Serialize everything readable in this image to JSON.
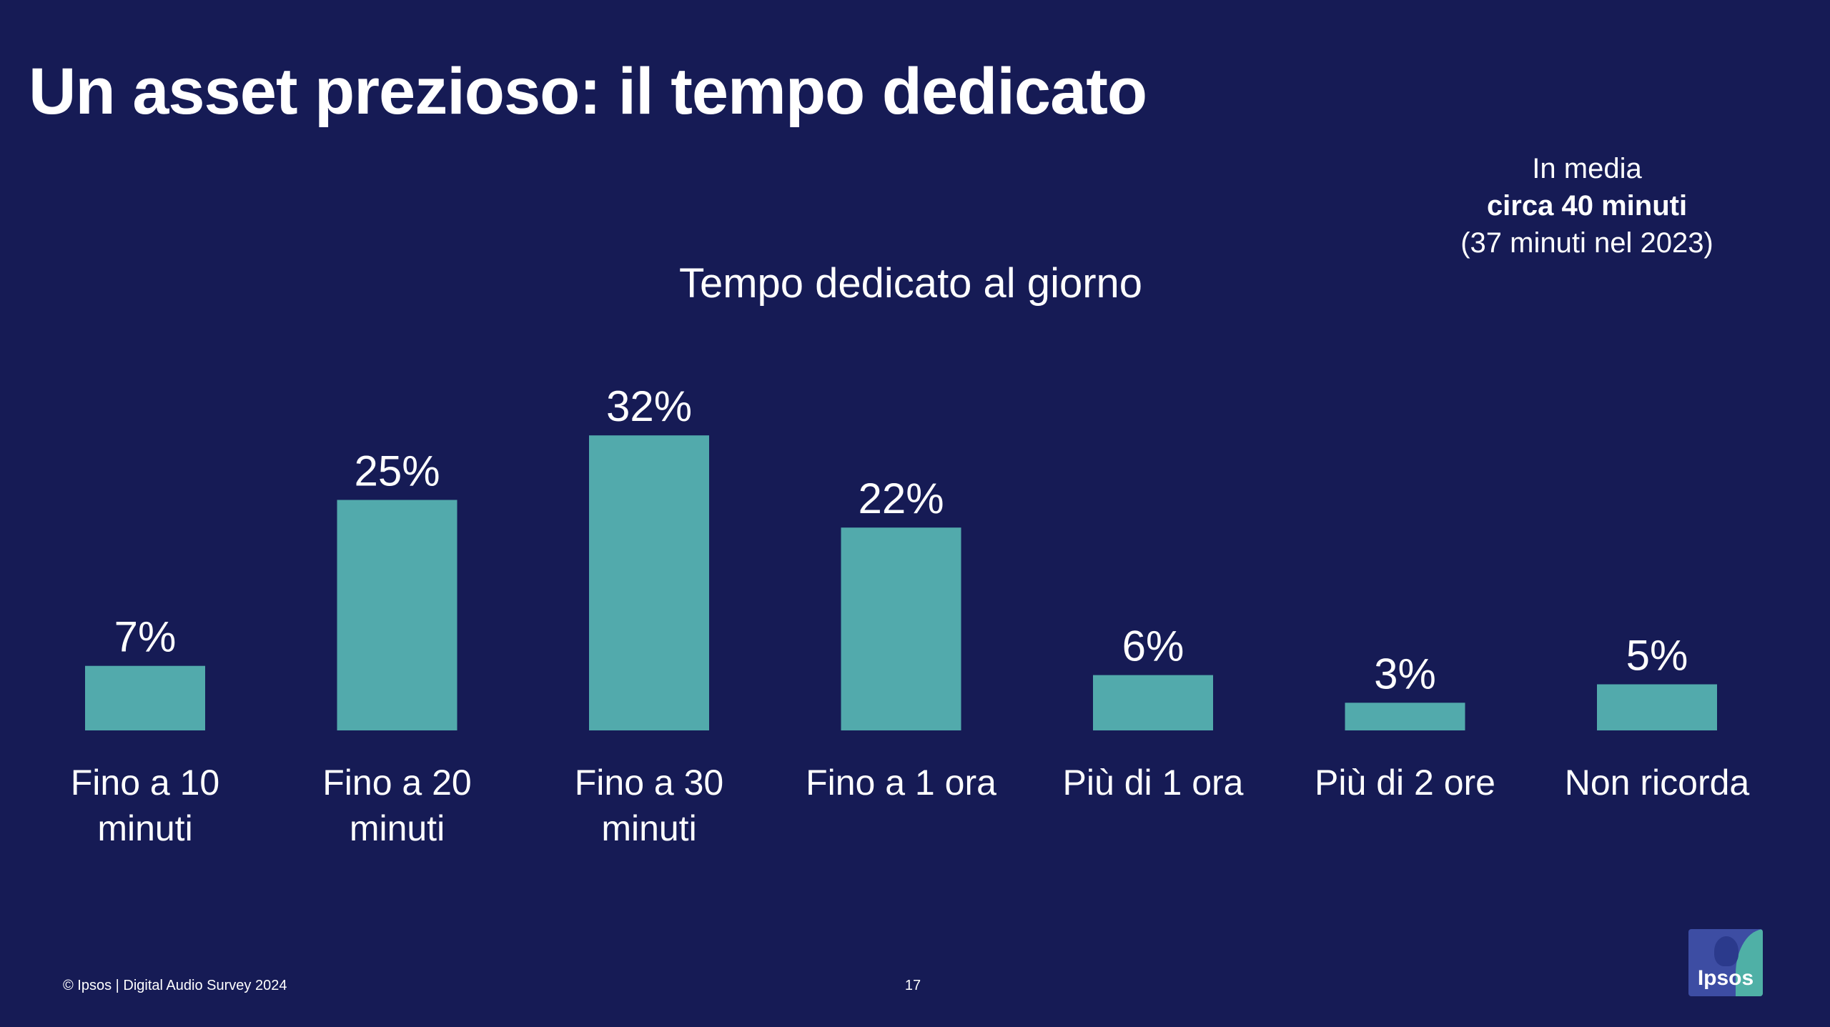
{
  "slide": {
    "title": "Un asset prezioso: il tempo dedicato",
    "average": {
      "line1": "In media",
      "line2": "circa 40 minuti",
      "line3": "(37 minuti nel 2023)"
    },
    "footer": "© Ipsos | Digital Audio Survey 2024",
    "page_number": "17",
    "logo_text": "Ipsos"
  },
  "colors": {
    "background": "#161b55",
    "bar": "#52aaac",
    "text": "#ffffff"
  },
  "chart_data": {
    "type": "bar",
    "title": "Tempo dedicato al giorno",
    "categories": [
      [
        "Fino a 10",
        "minuti"
      ],
      [
        "Fino a 20",
        "minuti"
      ],
      [
        "Fino a 30",
        "minuti"
      ],
      [
        "Fino a 1 ora"
      ],
      [
        "Più di 1 ora"
      ],
      [
        "Più di 2 ore"
      ],
      [
        "Non ricorda"
      ]
    ],
    "values": [
      7,
      25,
      32,
      22,
      6,
      3,
      5
    ],
    "value_labels": [
      "7%",
      "25%",
      "32%",
      "22%",
      "6%",
      "3%",
      "5%"
    ],
    "unit": "%",
    "grid": false,
    "legend": "none"
  }
}
